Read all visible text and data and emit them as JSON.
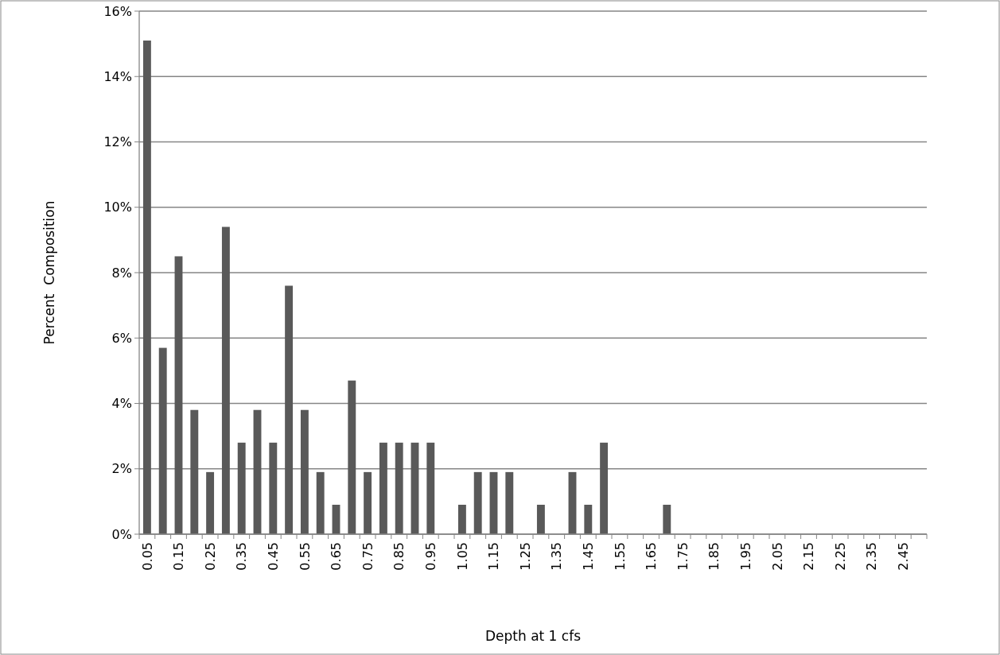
{
  "chart_data": {
    "type": "bar",
    "xlabel": "Depth at 1 cfs",
    "ylabel": "Percent  Composition",
    "categories": [
      "0.05",
      null,
      "0.15",
      null,
      "0.25",
      null,
      "0.35",
      null,
      "0.45",
      null,
      "0.55",
      null,
      "0.65",
      null,
      "0.75",
      null,
      "0.85",
      null,
      "0.95",
      null,
      "1.05",
      null,
      "1.15",
      null,
      "1.25",
      null,
      "1.35",
      null,
      "1.45",
      null,
      "1.55",
      null,
      "1.65",
      null,
      "1.75",
      null,
      "1.85",
      null,
      "1.95",
      null,
      "2.05",
      null,
      "2.15",
      null,
      "2.25",
      null,
      "2.35",
      null,
      "2.45",
      null
    ],
    "values": [
      15.1,
      5.7,
      8.5,
      3.8,
      1.9,
      9.4,
      2.8,
      3.8,
      2.8,
      7.6,
      3.8,
      1.9,
      0.9,
      4.7,
      1.9,
      2.8,
      2.8,
      2.8,
      2.8,
      0,
      0.9,
      1.9,
      1.9,
      1.9,
      0,
      0.9,
      0,
      1.9,
      0.9,
      2.8,
      0,
      0,
      0,
      0.9,
      0,
      0,
      0,
      0,
      0,
      0,
      0,
      0,
      0,
      0,
      0,
      0,
      0,
      0,
      0,
      0
    ],
    "color": "#595959",
    "ylim": [
      0,
      16
    ],
    "yticks": [
      {
        "value": 0,
        "label": "0%"
      },
      {
        "value": 2,
        "label": "2%"
      },
      {
        "value": 4,
        "label": "4%"
      },
      {
        "value": 6,
        "label": "6%"
      },
      {
        "value": 8,
        "label": "8%"
      },
      {
        "value": 10,
        "label": "10%"
      },
      {
        "value": 12,
        "label": "12%"
      },
      {
        "value": 14,
        "label": "14%"
      },
      {
        "value": 16,
        "label": "16%"
      }
    ],
    "grid": "y"
  }
}
